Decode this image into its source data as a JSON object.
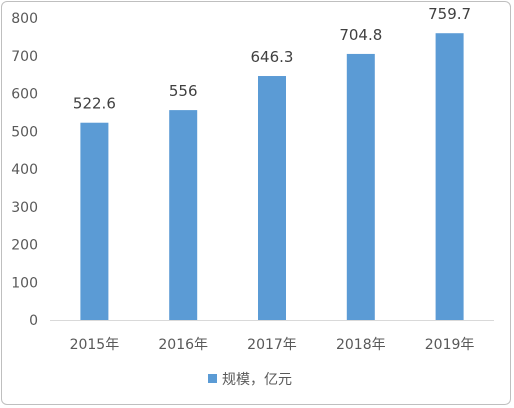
{
  "chart_data": {
    "type": "bar",
    "categories": [
      "2015年",
      "2016年",
      "2017年",
      "2018年",
      "2019年"
    ],
    "series": [
      {
        "name": "规模，亿元",
        "values": [
          522.6,
          556,
          646.3,
          704.8,
          759.7
        ]
      }
    ],
    "data_labels": [
      "522.6",
      "556",
      "646.3",
      "704.8",
      "759.7"
    ],
    "ylim": [
      0,
      800
    ],
    "yticks": [
      0,
      100,
      200,
      300,
      400,
      500,
      600,
      700,
      800
    ],
    "grid": false,
    "legend_position": "bottom",
    "colors": {
      "bar": "#5b9bd5",
      "axis": "#d9d9d9",
      "text": "#595959"
    }
  }
}
